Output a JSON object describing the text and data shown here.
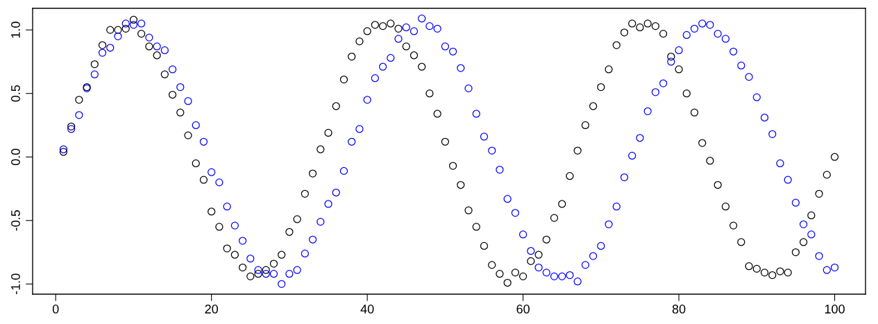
{
  "chart_data": {
    "type": "scatter",
    "marker": "circle",
    "grid": false,
    "x": [
      1,
      2,
      3,
      4,
      5,
      6,
      7,
      8,
      9,
      10,
      11,
      12,
      13,
      14,
      15,
      16,
      17,
      18,
      19,
      20,
      21,
      22,
      23,
      24,
      25,
      26,
      27,
      28,
      29,
      30,
      31,
      32,
      33,
      34,
      35,
      36,
      37,
      38,
      39,
      40,
      41,
      42,
      43,
      44,
      45,
      46,
      47,
      48,
      49,
      50,
      51,
      52,
      53,
      54,
      55,
      56,
      57,
      58,
      59,
      60,
      61,
      62,
      63,
      64,
      65,
      66,
      67,
      68,
      69,
      70,
      71,
      72,
      73,
      74,
      75,
      76,
      77,
      78,
      79,
      80,
      81,
      82,
      83,
      84,
      85,
      86,
      87,
      88,
      89,
      90,
      91,
      92,
      93,
      94,
      95,
      96,
      97,
      98,
      99,
      100
    ],
    "series": [
      {
        "color": "#000000",
        "values": [
          0.04,
          0.24,
          0.45,
          0.55,
          0.73,
          0.88,
          1.0,
          1.0,
          1.01,
          1.08,
          0.97,
          0.87,
          0.8,
          0.65,
          0.49,
          0.35,
          0.17,
          -0.05,
          -0.18,
          -0.43,
          -0.55,
          -0.72,
          -0.77,
          -0.87,
          -0.94,
          -0.92,
          -0.89,
          -0.84,
          -0.77,
          -0.59,
          -0.49,
          -0.29,
          -0.13,
          0.06,
          0.19,
          0.4,
          0.61,
          0.79,
          0.91,
          0.99,
          1.04,
          1.03,
          1.05,
          1.01,
          0.87,
          0.8,
          0.71,
          0.5,
          0.34,
          0.12,
          -0.07,
          -0.22,
          -0.42,
          -0.55,
          -0.7,
          -0.85,
          -0.92,
          -0.99,
          -0.91,
          -0.94,
          -0.82,
          -0.77,
          -0.65,
          -0.48,
          -0.37,
          -0.15,
          0.05,
          0.25,
          0.4,
          0.55,
          0.69,
          0.88,
          0.98,
          1.05,
          1.02,
          1.05,
          1.03,
          0.97,
          0.79,
          0.69,
          0.5,
          0.35,
          0.11,
          -0.03,
          -0.22,
          -0.39,
          -0.54,
          -0.67,
          -0.86,
          -0.88,
          -0.91,
          -0.93,
          -0.9,
          -0.91,
          -0.75,
          -0.67,
          -0.46,
          -0.29,
          -0.14,
          0.0
        ]
      },
      {
        "color": "#0000ff",
        "values": [
          0.06,
          0.22,
          0.33,
          0.54,
          0.65,
          0.82,
          0.86,
          0.95,
          1.05,
          1.04,
          1.05,
          0.94,
          0.87,
          0.84,
          0.69,
          0.55,
          0.44,
          0.25,
          0.12,
          -0.12,
          -0.2,
          -0.39,
          -0.54,
          -0.66,
          -0.8,
          -0.89,
          -0.92,
          -0.92,
          -1.0,
          -0.92,
          -0.89,
          -0.76,
          -0.65,
          -0.51,
          -0.37,
          -0.28,
          -0.11,
          0.12,
          0.22,
          0.45,
          0.62,
          0.71,
          0.78,
          0.93,
          1.02,
          0.99,
          1.09,
          1.03,
          1.01,
          0.87,
          0.83,
          0.7,
          0.54,
          0.34,
          0.16,
          0.05,
          -0.1,
          -0.33,
          -0.44,
          -0.61,
          -0.74,
          -0.87,
          -0.91,
          -0.94,
          -0.94,
          -0.93,
          -0.98,
          -0.85,
          -0.78,
          -0.7,
          -0.53,
          -0.39,
          -0.16,
          0.01,
          0.15,
          0.36,
          0.51,
          0.58,
          0.75,
          0.84,
          0.96,
          1.01,
          1.05,
          1.04,
          0.97,
          0.93,
          0.83,
          0.72,
          0.63,
          0.47,
          0.31,
          0.18,
          -0.05,
          -0.18,
          -0.36,
          -0.53,
          -0.61,
          -0.78,
          -0.89,
          -0.87
        ]
      }
    ],
    "xlim": [
      -2.96,
      103.96
    ],
    "ylim": [
      -1.08,
      1.17
    ],
    "xticks": [
      0,
      20,
      40,
      60,
      80,
      100
    ],
    "yticks": [
      {
        "value": -1.0,
        "label": "-1.0"
      },
      {
        "value": -0.5,
        "label": "-0.5"
      },
      {
        "value": 0.0,
        "label": "0.0"
      },
      {
        "value": 0.5,
        "label": "0.5"
      },
      {
        "value": 1.0,
        "label": "1.0"
      }
    ]
  }
}
